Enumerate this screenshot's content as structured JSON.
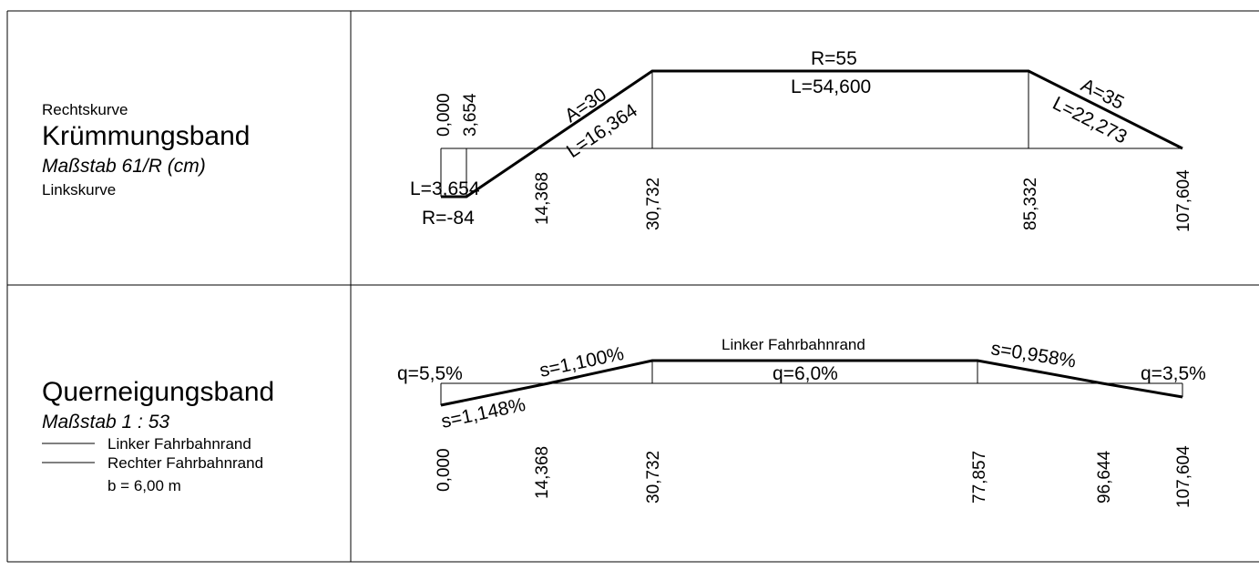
{
  "kruemmungsband": {
    "label_top": "Rechtskurve",
    "title": "Krümmungsband",
    "scale": "Maßstab 61/R (cm)",
    "label_bottom": "Linkskurve",
    "stations": [
      "0,000",
      "3,654",
      "14,368",
      "30,732",
      "85,332",
      "107,604"
    ],
    "elements": {
      "arc1_l": "L=3,654",
      "arc1_r": "R=-84",
      "clothoid1_a": "A=30",
      "clothoid1_l": "L=16,364",
      "arc2_r": "R=55",
      "arc2_l": "L=54,600",
      "clothoid2_a": "A=35",
      "clothoid2_l": "L=22,273"
    }
  },
  "querneigungsband": {
    "title": "Querneigungsband",
    "scale": "Maßstab 1 : 53",
    "legend": [
      "Linker Fahrbahnrand",
      "Rechter Fahrbahnrand"
    ],
    "width_note": "b = 6,00 m",
    "stations": [
      "0,000",
      "14,368",
      "30,732",
      "77,857",
      "96,644",
      "107,604"
    ],
    "annotations": {
      "q_start": "q=5,5%",
      "s_left_up": "s=1,100%",
      "s_right_down": "s=1,148%",
      "edge_label": "Linker Fahrbahnrand",
      "q_mid": "q=6,0%",
      "s_right_desc": "s=0,958%",
      "q_end": "q=3,5%"
    }
  }
}
